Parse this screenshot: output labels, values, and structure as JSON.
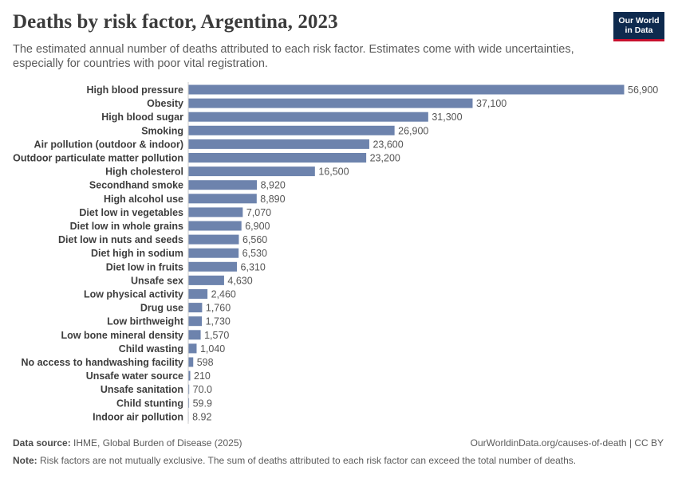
{
  "header": {
    "title": "Deaths by risk factor, Argentina, 2023",
    "subtitle": "The estimated annual number of deaths attributed to each risk factor. Estimates come with wide uncertainties, especially for countries with poor vital registration."
  },
  "logo": {
    "line1": "Our World",
    "line2": "in Data"
  },
  "footer": {
    "source_label": "Data source:",
    "source_text": "IHME, Global Burden of Disease (2025)",
    "url_text": "OurWorldinData.org/causes-of-death | CC BY",
    "note_label": "Note:",
    "note_text": "Risk factors are not mutually exclusive. The sum of deaths attributed to each risk factor can exceed the total number of deaths."
  },
  "colors": {
    "bar": "#6d83ad",
    "logo_bg": "#0e2a4e",
    "logo_accent": "#c8102e"
  },
  "chart_data": {
    "type": "bar",
    "orientation": "horizontal",
    "categories": [
      "High blood pressure",
      "Obesity",
      "High blood sugar",
      "Smoking",
      "Air pollution (outdoor & indoor)",
      "Outdoor particulate matter pollution",
      "High cholesterol",
      "Secondhand smoke",
      "High alcohol use",
      "Diet low in vegetables",
      "Diet low in whole grains",
      "Diet low in nuts and seeds",
      "Diet high in sodium",
      "Diet low in fruits",
      "Unsafe sex",
      "Low physical activity",
      "Drug use",
      "Low birthweight",
      "Low bone mineral density",
      "Child wasting",
      "No access to handwashing facility",
      "Unsafe water source",
      "Unsafe sanitation",
      "Child stunting",
      "Indoor air pollution"
    ],
    "values": [
      56900,
      37100,
      31300,
      26900,
      23600,
      23200,
      16500,
      8920,
      8890,
      7070,
      6900,
      6560,
      6530,
      6310,
      4630,
      2460,
      1760,
      1730,
      1570,
      1040,
      598,
      210,
      70.0,
      59.9,
      8.92
    ],
    "value_labels": [
      "56,900",
      "37,100",
      "31,300",
      "26,900",
      "23,600",
      "23,200",
      "16,500",
      "8,920",
      "8,890",
      "7,070",
      "6,900",
      "6,560",
      "6,530",
      "6,310",
      "4,630",
      "2,460",
      "1,760",
      "1,730",
      "1,570",
      "1,040",
      "598",
      "210",
      "70.0",
      "59.9",
      "8.92"
    ],
    "xlim": [
      0,
      56900
    ],
    "grid": false,
    "legend": "none"
  }
}
